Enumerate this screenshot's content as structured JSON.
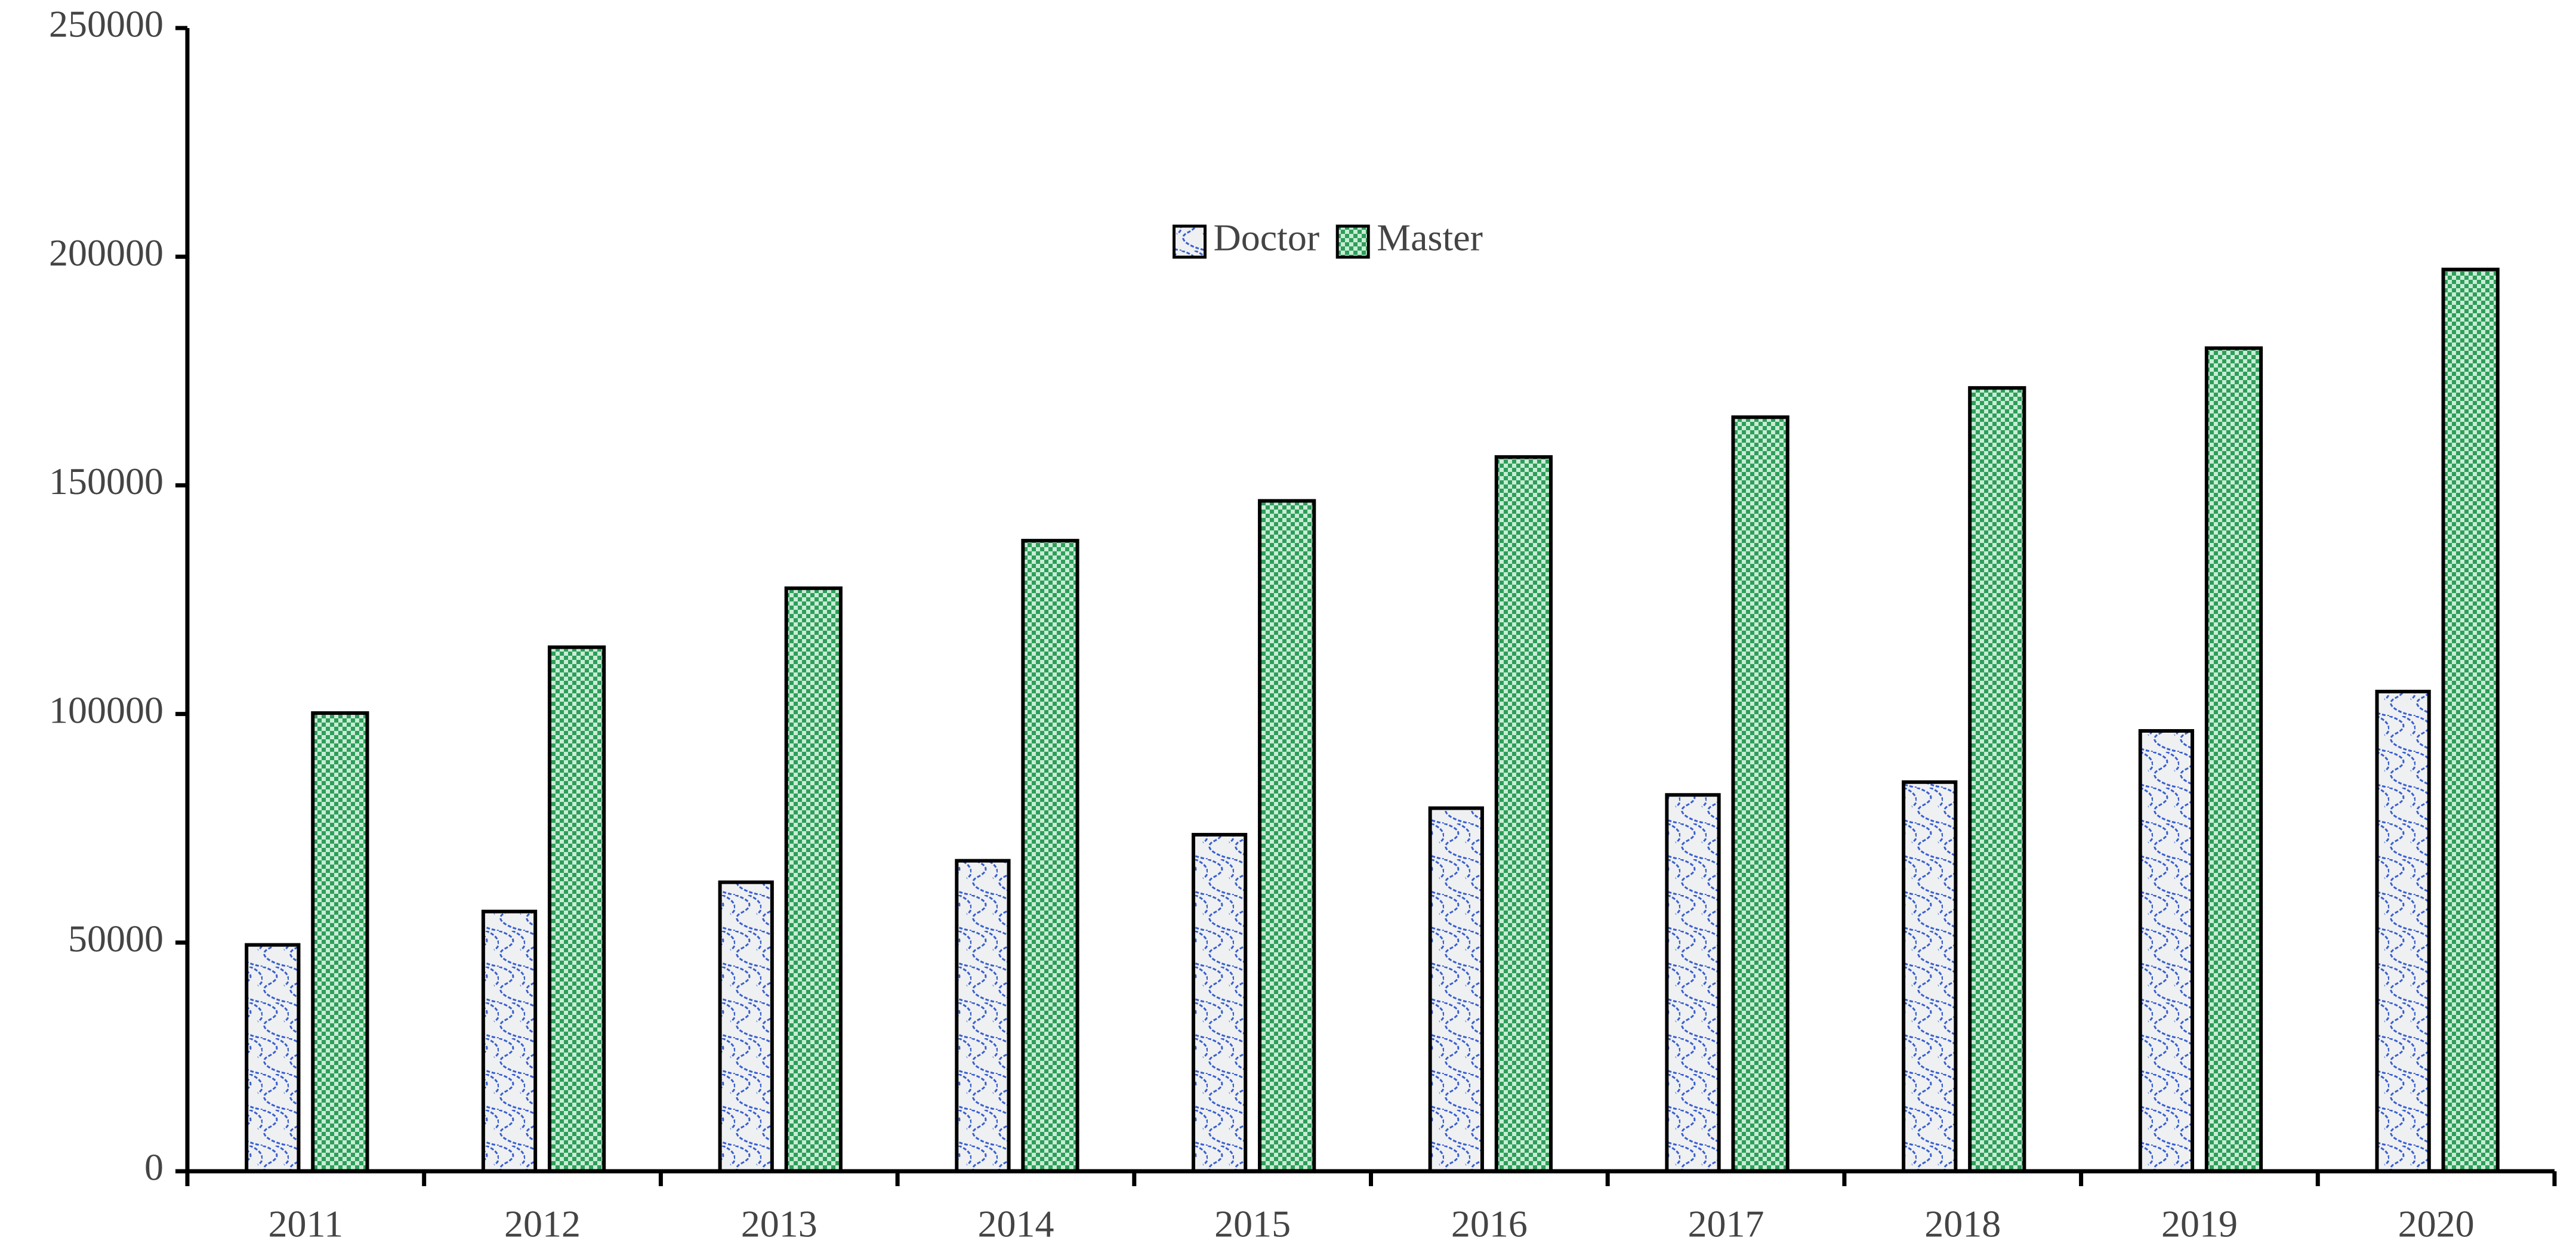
{
  "chart_data": {
    "type": "bar",
    "categories": [
      "2011",
      "2012",
      "2013",
      "2014",
      "2015",
      "2016",
      "2017",
      "2018",
      "2019",
      "2020"
    ],
    "series": [
      {
        "name": "Doctor",
        "color": "#3a5fcd",
        "values": [
          49500,
          56800,
          63200,
          67900,
          73600,
          79400,
          82300,
          85100,
          96300,
          104900
        ]
      },
      {
        "name": "Master",
        "color": "#2e9e5a",
        "values": [
          100200,
          114600,
          127500,
          137900,
          146600,
          156200,
          164900,
          171300,
          180000,
          197200
        ]
      }
    ],
    "ylim": [
      0,
      250000
    ],
    "yticks": [
      0,
      50000,
      100000,
      150000,
      200000,
      250000
    ],
    "grid": false,
    "legend": "upper center"
  }
}
